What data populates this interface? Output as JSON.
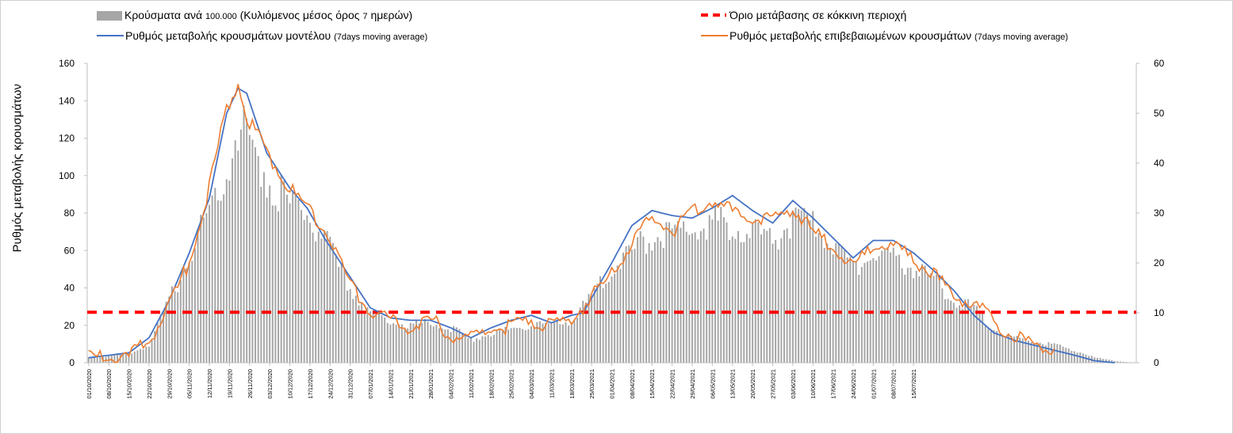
{
  "chart_data": {
    "type": "combo-bar-line",
    "ylabel": "Ρυθμός μεταβολής κρουσμάτων",
    "legend": {
      "bars": {
        "text": "Κρούσματα ανά",
        "small1": "100.000",
        "text2": "(Κυλιόμενος μέσος όρος",
        "small2": "7",
        "text3": "ημερών)"
      },
      "threshold": {
        "text": "Όριο μετάβασης σε κόκκινη περιοχή"
      },
      "model": {
        "text": "Ρυθμός μεταβολής κρουσμάτων μοντέλου",
        "small": "(7days moving average)"
      },
      "confirmed": {
        "text": "Ρυθμός μεταβολής επιβεβαιωμένων κρουσμάτων",
        "small": "(7days moving average)"
      }
    },
    "y_left": {
      "min": 0,
      "max": 160,
      "ticks": [
        "0",
        "20",
        "40",
        "60",
        "80",
        "100",
        "120",
        "140",
        "160"
      ]
    },
    "y_right": {
      "min": 0,
      "max": 60,
      "ticks": [
        "0",
        "10",
        "20",
        "30",
        "40",
        "50",
        "60"
      ]
    },
    "x_ticks": [
      "01/10/2020",
      "08/10/2020",
      "15/10/2020",
      "22/10/2020",
      "29/10/2020",
      "05/11/2020",
      "12/11/2020",
      "19/11/2020",
      "26/11/2020",
      "03/12/2020",
      "10/12/2020",
      "17/12/2020",
      "24/12/2020",
      "31/12/2020",
      "07/01/2021",
      "14/01/2021",
      "21/01/2021",
      "28/01/2021",
      "04/02/2021",
      "11/02/2021",
      "18/02/2021",
      "25/02/2021",
      "04/03/2021",
      "11/03/2021",
      "18/03/2021",
      "25/03/2021",
      "01/04/2021",
      "08/04/2021",
      "15/04/2021",
      "22/04/2021",
      "29/04/2021",
      "06/05/2021",
      "13/05/2021",
      "20/05/2021",
      "27/05/2021",
      "03/06/2021",
      "10/06/2021",
      "17/06/2021",
      "24/06/2021",
      "01/07/2021",
      "08/07/2021",
      "15/07/2021"
    ],
    "threshold_value": 27,
    "cases_per_100k_keypoints": [
      [
        0,
        3
      ],
      [
        14,
        5
      ],
      [
        21,
        10
      ],
      [
        35,
        60
      ],
      [
        48,
        112
      ],
      [
        52,
        132
      ],
      [
        55,
        130
      ],
      [
        62,
        105
      ],
      [
        70,
        90
      ],
      [
        76,
        84
      ],
      [
        82,
        70
      ],
      [
        90,
        45
      ],
      [
        98,
        28
      ],
      [
        105,
        24
      ],
      [
        112,
        21
      ],
      [
        119,
        23
      ],
      [
        126,
        20
      ],
      [
        133,
        13
      ],
      [
        140,
        17
      ],
      [
        147,
        19
      ],
      [
        154,
        22
      ],
      [
        161,
        21
      ],
      [
        168,
        24
      ],
      [
        175,
        37
      ],
      [
        182,
        55
      ],
      [
        189,
        62
      ],
      [
        196,
        72
      ],
      [
        203,
        74
      ],
      [
        210,
        76
      ],
      [
        217,
        79
      ],
      [
        224,
        80
      ],
      [
        231,
        73
      ],
      [
        238,
        71
      ],
      [
        245,
        79
      ],
      [
        252,
        79
      ],
      [
        259,
        65
      ],
      [
        266,
        56
      ],
      [
        273,
        60
      ],
      [
        280,
        59
      ],
      [
        287,
        54
      ],
      [
        294,
        48
      ],
      [
        301,
        36
      ],
      [
        308,
        31
      ],
      [
        315,
        19
      ],
      [
        322,
        14
      ],
      [
        329,
        12
      ],
      [
        336,
        10
      ],
      [
        343,
        7
      ],
      [
        350,
        3
      ],
      [
        357,
        1
      ],
      [
        364,
        0
      ]
    ],
    "model_rate_keypoints": [
      [
        0,
        1.0
      ],
      [
        14,
        2.0
      ],
      [
        21,
        5.0
      ],
      [
        28,
        12.5
      ],
      [
        35,
        22.0
      ],
      [
        42,
        33.0
      ],
      [
        48,
        50.0
      ],
      [
        52,
        55.0
      ],
      [
        55,
        54.0
      ],
      [
        62,
        42.0
      ],
      [
        70,
        35.0
      ],
      [
        76,
        31.0
      ],
      [
        82,
        25.0
      ],
      [
        90,
        18.0
      ],
      [
        98,
        11.0
      ],
      [
        105,
        9.0
      ],
      [
        112,
        8.5
      ],
      [
        119,
        8.5
      ],
      [
        126,
        7.0
      ],
      [
        133,
        5.0
      ],
      [
        140,
        7.0
      ],
      [
        147,
        8.5
      ],
      [
        154,
        9.5
      ],
      [
        161,
        8.0
      ],
      [
        168,
        9.5
      ],
      [
        172,
        10.0
      ],
      [
        175,
        13.0
      ],
      [
        182,
        20.0
      ],
      [
        189,
        27.5
      ],
      [
        196,
        30.5
      ],
      [
        203,
        29.5
      ],
      [
        210,
        29.0
      ],
      [
        217,
        31.0
      ],
      [
        224,
        33.5
      ],
      [
        231,
        30.5
      ],
      [
        238,
        28.0
      ],
      [
        245,
        32.5
      ],
      [
        252,
        29.0
      ],
      [
        259,
        25.0
      ],
      [
        266,
        21.0
      ],
      [
        273,
        24.5
      ],
      [
        280,
        24.5
      ],
      [
        287,
        22.0
      ],
      [
        294,
        18.5
      ],
      [
        301,
        14.5
      ],
      [
        308,
        9.5
      ],
      [
        315,
        6.0
      ],
      [
        322,
        4.5
      ],
      [
        329,
        3.5
      ],
      [
        336,
        2.5
      ],
      [
        343,
        1.5
      ],
      [
        350,
        0.4
      ],
      [
        357,
        0.0
      ]
    ],
    "confirmed_rate_keypoints": [
      [
        0,
        2.0
      ],
      [
        7,
        1.5
      ],
      [
        14,
        2.0
      ],
      [
        21,
        5.0
      ],
      [
        28,
        12.0
      ],
      [
        35,
        21.0
      ],
      [
        42,
        36.0
      ],
      [
        48,
        52.0
      ],
      [
        52,
        57.0
      ],
      [
        55,
        50.0
      ],
      [
        62,
        43.0
      ],
      [
        70,
        35.5
      ],
      [
        76,
        32.0
      ],
      [
        82,
        28.0
      ],
      [
        90,
        17.5
      ],
      [
        98,
        11.0
      ],
      [
        105,
        9.0
      ],
      [
        112,
        8.0
      ],
      [
        119,
        9.5
      ],
      [
        126,
        6.5
      ],
      [
        133,
        5.5
      ],
      [
        140,
        7.5
      ],
      [
        147,
        8.0
      ],
      [
        154,
        9.5
      ],
      [
        161,
        8.0
      ],
      [
        168,
        9.5
      ],
      [
        175,
        14.0
      ],
      [
        182,
        18.5
      ],
      [
        189,
        24.5
      ],
      [
        196,
        30.0
      ],
      [
        203,
        27.0
      ],
      [
        210,
        31.0
      ],
      [
        217,
        33.5
      ],
      [
        224,
        31.0
      ],
      [
        231,
        30.0
      ],
      [
        238,
        29.5
      ],
      [
        245,
        32.0
      ],
      [
        252,
        27.0
      ],
      [
        259,
        24.0
      ],
      [
        266,
        19.5
      ],
      [
        273,
        24.5
      ],
      [
        280,
        24.0
      ],
      [
        287,
        21.5
      ],
      [
        294,
        18.5
      ],
      [
        301,
        14.0
      ],
      [
        308,
        13.0
      ],
      [
        315,
        9.0
      ],
      [
        322,
        6.0
      ],
      [
        329,
        4.5
      ],
      [
        336,
        4.0
      ]
    ]
  }
}
